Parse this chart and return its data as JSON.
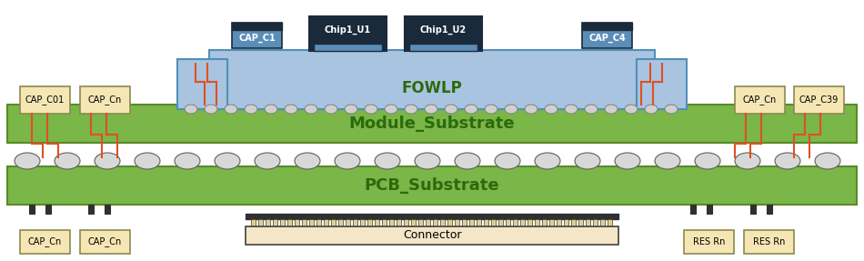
{
  "bg_color": "#ffffff",
  "fig_width": 9.5,
  "fig_height": 2.87,
  "colors": {
    "green_substrate": "#7ab648",
    "green_substrate_dark": "#5a8a28",
    "fowlp_blue": "#a8c4e0",
    "fowlp_blue_dark": "#7aaac8",
    "chip_dark": "#1a2a3a",
    "chip_blue": "#5b8db8",
    "cap_yellow": "#f5e6b4",
    "cap_border": "#8a8a50",
    "orange_trace": "#e05020",
    "ball_gray": "#c0c0c0",
    "ball_dark": "#404040",
    "connector_yellow": "#f5e6c8",
    "connector_border": "#404040",
    "white": "#ffffff",
    "black": "#000000",
    "text_green": "#2d6a0a"
  },
  "labels": {
    "fowlp": "FOWLP",
    "module_substrate": "Module_Substrate",
    "pcb_substrate": "PCB_Substrate",
    "connector": "Connector",
    "cap_c1": "CAP_C1",
    "cap_c4": "CAP_C4",
    "cap_c01": "CAP_C01",
    "cap_cn": "CAP_Cn",
    "cap_c39": "CAP_C39",
    "chip1_u1": "Chip1_U1",
    "chip1_u2": "Chip1_U2",
    "res_rn": "RES Rn"
  }
}
